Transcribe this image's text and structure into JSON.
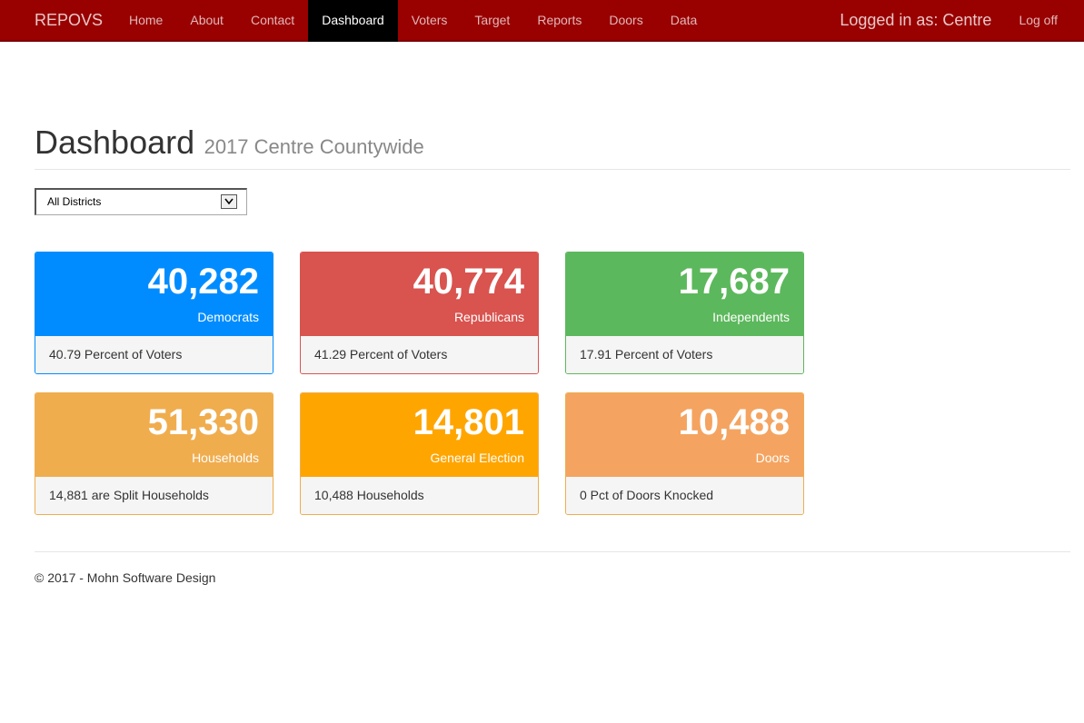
{
  "navbar": {
    "brand": "REPOVS",
    "items": [
      {
        "label": "Home",
        "active": false
      },
      {
        "label": "About",
        "active": false
      },
      {
        "label": "Contact",
        "active": false
      },
      {
        "label": "Dashboard",
        "active": true
      },
      {
        "label": "Voters",
        "active": false
      },
      {
        "label": "Target",
        "active": false
      },
      {
        "label": "Reports",
        "active": false
      },
      {
        "label": "Doors",
        "active": false
      },
      {
        "label": "Data",
        "active": false
      }
    ],
    "logged_in": "Logged in as: Centre",
    "logoff": "Log off",
    "color": "#990000",
    "active_color": "#000000"
  },
  "header": {
    "title": "Dashboard",
    "subtitle": "2017 Centre Countywide"
  },
  "district_select": {
    "value": "All Districts"
  },
  "panels": [
    {
      "name": "democrats",
      "number": "40,282",
      "label": "Democrats",
      "footer": "40.79 Percent of Voters",
      "color": "#008cff",
      "border": "#008cff"
    },
    {
      "name": "republicans",
      "number": "40,774",
      "label": "Republicans",
      "footer": "41.29 Percent of Voters",
      "color": "#d9534f",
      "border": "#d9534f"
    },
    {
      "name": "independents",
      "number": "17,687",
      "label": "Independents",
      "footer": "17.91 Percent of Voters",
      "color": "#5cb85c",
      "border": "#5cb85c"
    },
    {
      "name": "households",
      "number": "51,330",
      "label": "Households",
      "footer": "14,881 are Split Households",
      "color": "#f0ad4e",
      "border": "#f0ad4e"
    },
    {
      "name": "general-election",
      "number": "14,801",
      "label": "General Election",
      "footer": "10,488 Households",
      "color": "#ffa500",
      "border": "#f0ad4e"
    },
    {
      "name": "doors",
      "number": "10,488",
      "label": "Doors",
      "footer": "0 Pct of Doors Knocked",
      "color": "#f4a460",
      "border": "#f0ad4e"
    }
  ],
  "footer": {
    "text": "© 2017 - Mohn Software Design"
  }
}
